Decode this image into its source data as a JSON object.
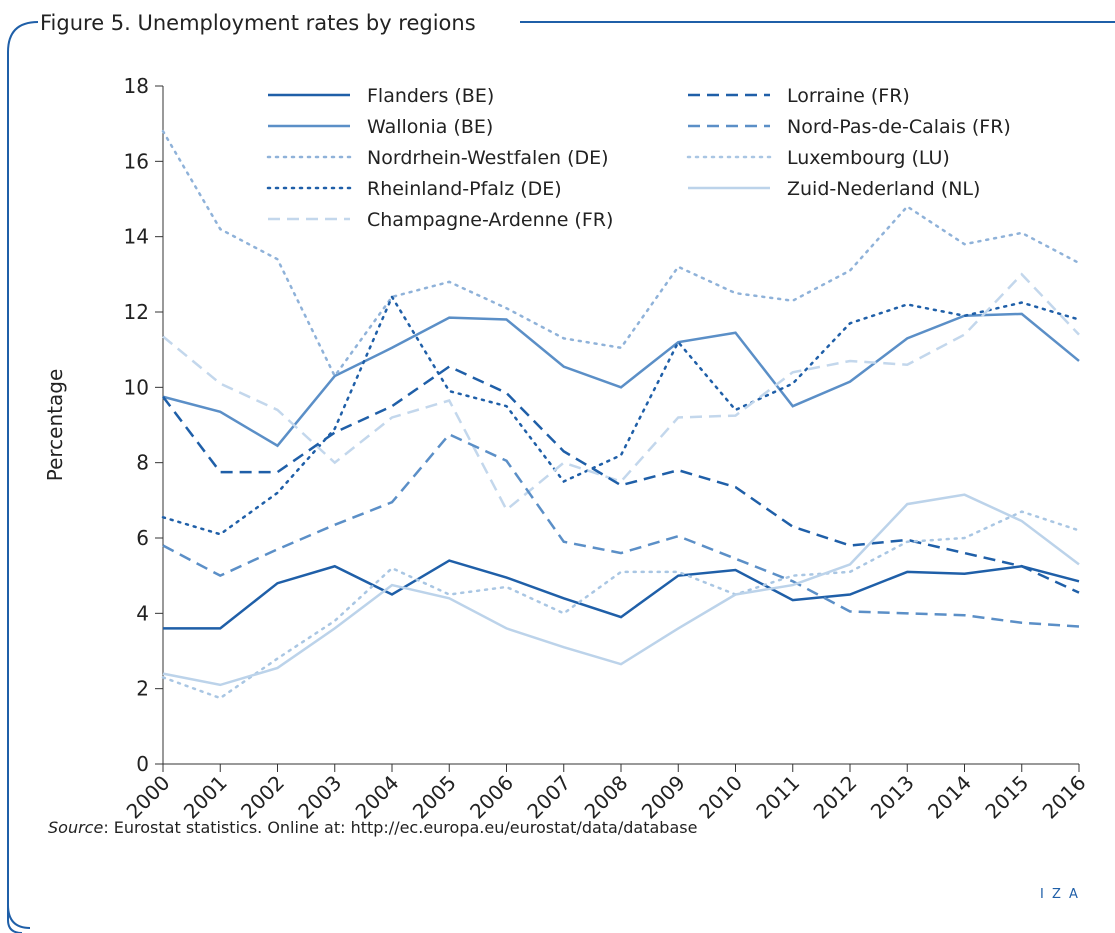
{
  "chart_data": {
    "type": "line",
    "title": "Figure 5. Unemployment rates by regions",
    "y_label": "Percentage",
    "source_label": "Source",
    "source_text": ": Eurostat statistics. Online at: http://ec.europa.eu/eurostat/data/database",
    "logo": "I Z A",
    "x": [
      2000,
      2001,
      2002,
      2003,
      2004,
      2005,
      2006,
      2007,
      2008,
      2009,
      2010,
      2011,
      2012,
      2013,
      2014,
      2015,
      2016
    ],
    "xlim": [
      2000,
      2016
    ],
    "xticks": [
      2000,
      2001,
      2002,
      2003,
      2004,
      2005,
      2006,
      2007,
      2008,
      2009,
      2010,
      2011,
      2012,
      2013,
      2014,
      2015,
      2016
    ],
    "ylim": [
      0,
      18
    ],
    "yticks": [
      0,
      2,
      4,
      6,
      8,
      10,
      12,
      14,
      16,
      18
    ],
    "series": [
      {
        "name": "Flanders (BE)",
        "color": "#1f5fa8",
        "dash": "solid",
        "values": [
          3.6,
          3.6,
          4.8,
          5.25,
          4.5,
          5.4,
          4.95,
          4.4,
          3.9,
          5.0,
          5.15,
          4.35,
          4.5,
          5.1,
          5.05,
          5.25,
          4.85
        ]
      },
      {
        "name": "Wallonia (BE)",
        "color": "#5b8fc7",
        "dash": "solid",
        "values": [
          9.75,
          9.35,
          8.45,
          10.3,
          11.05,
          11.85,
          11.8,
          10.55,
          10.0,
          11.2,
          11.45,
          9.5,
          10.15,
          11.3,
          11.9,
          11.95,
          10.7
        ]
      },
      {
        "name": "Nordrhein-Westfalen (DE)",
        "color": "#8fb2d9",
        "dash": "dotted",
        "values": [
          16.8,
          14.2,
          13.4,
          10.3,
          12.4,
          12.8,
          12.1,
          11.3,
          11.05,
          13.2,
          12.5,
          12.3,
          13.1,
          14.8,
          13.8,
          14.1,
          13.3
        ]
      },
      {
        "name": "Rheinland-Pfalz (DE)",
        "color": "#1f5fa8",
        "dash": "dotted",
        "values": [
          6.55,
          6.1,
          7.2,
          8.9,
          12.4,
          9.9,
          9.5,
          7.5,
          8.2,
          11.2,
          9.4,
          10.1,
          11.7,
          12.2,
          11.9,
          12.25,
          11.8
        ]
      },
      {
        "name": "Champagne-Ardenne (FR)",
        "color": "#c3d7ec",
        "dash": "dashed",
        "values": [
          11.35,
          10.1,
          9.4,
          8.0,
          9.2,
          9.65,
          6.75,
          8.0,
          7.5,
          9.2,
          9.25,
          10.4,
          10.7,
          10.6,
          11.4,
          13.0,
          11.4
        ]
      },
      {
        "name": "Lorraine (FR)",
        "color": "#1f5fa8",
        "dash": "dashed",
        "values": [
          9.75,
          7.75,
          7.75,
          8.8,
          9.5,
          10.55,
          9.85,
          8.3,
          7.4,
          7.8,
          7.35,
          6.3,
          5.8,
          5.95,
          5.6,
          5.25,
          4.55
        ]
      },
      {
        "name": "Nord-Pas-de-Calais (FR)",
        "color": "#5b8fc7",
        "dash": "dashed",
        "values": [
          5.8,
          5.0,
          5.7,
          6.35,
          6.95,
          8.75,
          8.05,
          5.9,
          5.6,
          6.05,
          5.45,
          4.85,
          4.05,
          4.0,
          3.95,
          3.75,
          3.65
        ]
      },
      {
        "name": "Luxembourg (LU)",
        "color": "#a9c6e3",
        "dash": "dotted",
        "values": [
          2.3,
          1.75,
          2.8,
          3.8,
          5.2,
          4.5,
          4.7,
          4.0,
          5.1,
          5.1,
          4.5,
          5.0,
          5.1,
          5.9,
          6.0,
          6.7,
          6.2
        ]
      },
      {
        "name": "Zuid-Nederland (NL)",
        "color": "#bcd3ea",
        "dash": "solid",
        "values": [
          2.4,
          2.1,
          2.55,
          3.6,
          4.75,
          4.4,
          3.6,
          3.1,
          2.65,
          3.6,
          4.5,
          4.75,
          5.3,
          6.9,
          7.15,
          6.45,
          5.3
        ]
      }
    ]
  }
}
